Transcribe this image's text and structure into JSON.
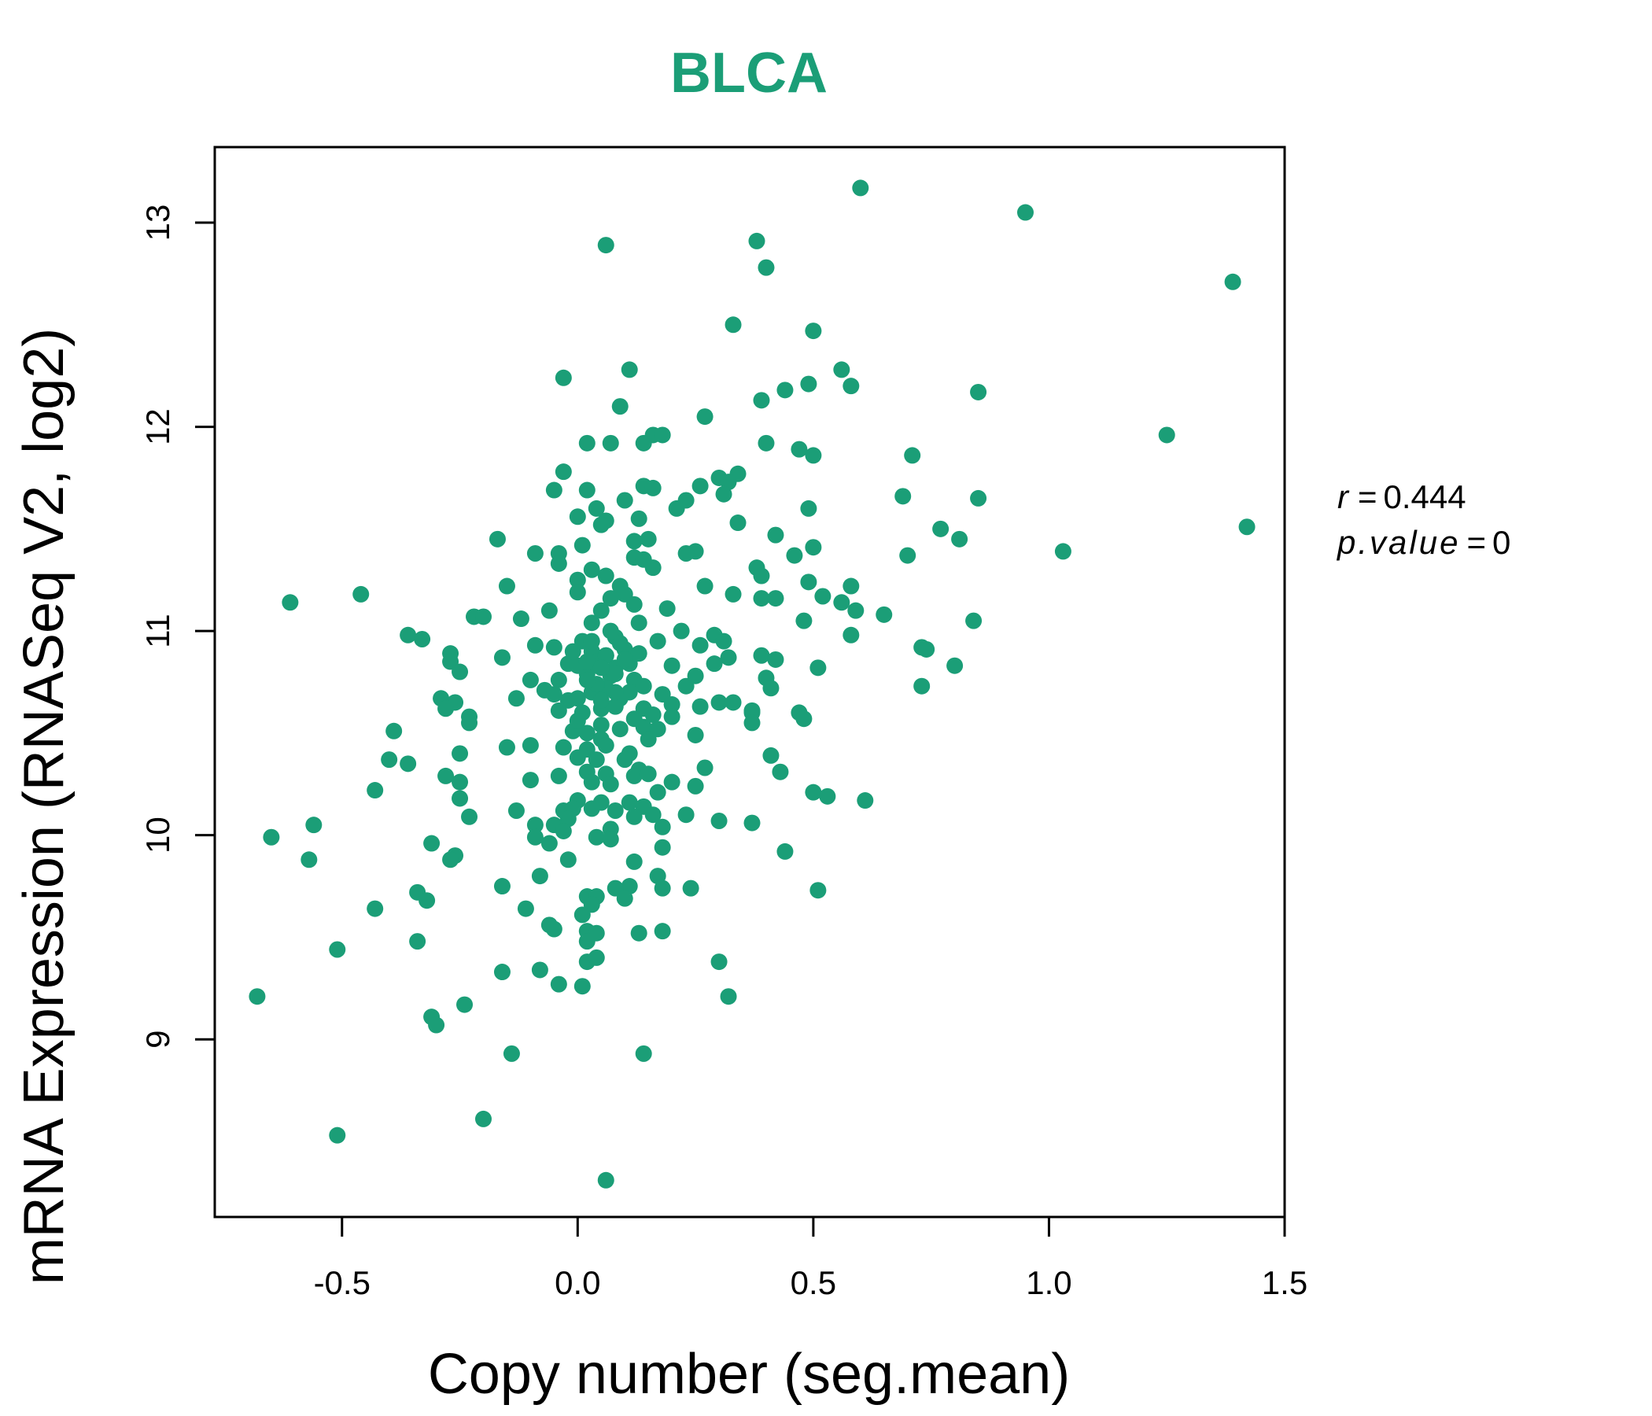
{
  "chart_data": {
    "type": "scatter",
    "title": "BLCA",
    "xlabel": "Copy number (seg.mean)",
    "ylabel": "mRNA Expression (RNASeq V2, log2)",
    "xlim": [
      -0.77,
      1.5
    ],
    "ylim": [
      8.13,
      13.37
    ],
    "x_ticks": [
      -0.5,
      0.0,
      0.5,
      1.0,
      1.5
    ],
    "x_tick_labels": [
      "-0.5",
      "0.0",
      "0.5",
      "1.0",
      "1.5"
    ],
    "y_ticks": [
      9,
      10,
      11,
      12,
      13
    ],
    "y_tick_labels": [
      "9",
      "10",
      "11",
      "12",
      "13"
    ],
    "grid": false,
    "point_color": "#1b9e77",
    "annotation": {
      "r_label": "r",
      "r_value": "0.444",
      "p_label": "p.value",
      "p_value": "0",
      "equals": "="
    },
    "points": [
      [
        0.6,
        13.17
      ],
      [
        0.95,
        13.05
      ],
      [
        1.39,
        12.71
      ],
      [
        0.06,
        12.89
      ],
      [
        0.38,
        12.91
      ],
      [
        0.4,
        12.78
      ],
      [
        0.33,
        12.5
      ],
      [
        0.5,
        12.47
      ],
      [
        -0.03,
        12.24
      ],
      [
        0.11,
        12.28
      ],
      [
        0.56,
        12.28
      ],
      [
        0.49,
        12.21
      ],
      [
        0.58,
        12.2
      ],
      [
        0.44,
        12.18
      ],
      [
        0.85,
        12.17
      ],
      [
        0.39,
        12.13
      ],
      [
        0.09,
        12.1
      ],
      [
        0.27,
        12.05
      ],
      [
        1.25,
        11.96
      ],
      [
        0.16,
        11.96
      ],
      [
        0.18,
        11.96
      ],
      [
        0.02,
        11.92
      ],
      [
        0.07,
        11.92
      ],
      [
        0.14,
        11.92
      ],
      [
        0.4,
        11.92
      ],
      [
        0.47,
        11.89
      ],
      [
        0.5,
        11.86
      ],
      [
        0.71,
        11.86
      ],
      [
        -0.03,
        11.78
      ],
      [
        0.34,
        11.77
      ],
      [
        0.3,
        11.75
      ],
      [
        0.32,
        11.73
      ],
      [
        0.14,
        11.71
      ],
      [
        0.16,
        11.7
      ],
      [
        0.02,
        11.69
      ],
      [
        -0.05,
        11.69
      ],
      [
        0.26,
        11.71
      ],
      [
        0.31,
        11.67
      ],
      [
        0.69,
        11.66
      ],
      [
        0.85,
        11.65
      ],
      [
        0.1,
        11.64
      ],
      [
        0.23,
        11.64
      ],
      [
        0.21,
        11.6
      ],
      [
        0.04,
        11.6
      ],
      [
        0.49,
        11.6
      ],
      [
        0.0,
        11.56
      ],
      [
        0.06,
        11.54
      ],
      [
        0.13,
        11.55
      ],
      [
        0.34,
        11.53
      ],
      [
        0.05,
        11.52
      ],
      [
        0.77,
        11.5
      ],
      [
        0.81,
        11.45
      ],
      [
        0.42,
        11.47
      ],
      [
        1.42,
        11.51
      ],
      [
        0.01,
        11.42
      ],
      [
        -0.17,
        11.45
      ],
      [
        0.15,
        11.45
      ],
      [
        0.12,
        11.44
      ],
      [
        0.5,
        11.41
      ],
      [
        1.03,
        11.39
      ],
      [
        -0.09,
        11.38
      ],
      [
        -0.04,
        11.38
      ],
      [
        0.12,
        11.36
      ],
      [
        0.25,
        11.39
      ],
      [
        0.23,
        11.38
      ],
      [
        0.46,
        11.37
      ],
      [
        0.7,
        11.37
      ],
      [
        0.14,
        11.35
      ],
      [
        0.16,
        11.31
      ],
      [
        -0.04,
        11.33
      ],
      [
        0.38,
        11.31
      ],
      [
        0.39,
        11.27
      ],
      [
        0.03,
        11.3
      ],
      [
        0.06,
        11.27
      ],
      [
        0.0,
        11.25
      ],
      [
        0.09,
        11.22
      ],
      [
        -0.15,
        11.22
      ],
      [
        0.27,
        11.22
      ],
      [
        0.49,
        11.24
      ],
      [
        0.58,
        11.22
      ],
      [
        -0.46,
        11.18
      ],
      [
        0.33,
        11.18
      ],
      [
        0.39,
        11.16
      ],
      [
        0.42,
        11.16
      ],
      [
        0.52,
        11.17
      ],
      [
        0.1,
        11.18
      ],
      [
        0.0,
        11.19
      ],
      [
        0.07,
        11.16
      ],
      [
        0.12,
        11.13
      ],
      [
        0.56,
        11.14
      ],
      [
        0.59,
        11.1
      ],
      [
        -0.61,
        11.14
      ],
      [
        0.19,
        11.11
      ],
      [
        -0.06,
        11.1
      ],
      [
        0.05,
        11.1
      ],
      [
        0.65,
        11.08
      ],
      [
        -0.22,
        11.07
      ],
      [
        -0.2,
        11.07
      ],
      [
        -0.12,
        11.06
      ],
      [
        0.48,
        11.05
      ],
      [
        0.84,
        11.05
      ],
      [
        0.03,
        11.04
      ],
      [
        0.13,
        11.04
      ],
      [
        0.22,
        11.0
      ],
      [
        -0.36,
        10.98
      ],
      [
        -0.33,
        10.96
      ],
      [
        0.29,
        10.98
      ],
      [
        0.31,
        10.95
      ],
      [
        0.58,
        10.98
      ],
      [
        -0.09,
        10.93
      ],
      [
        -0.05,
        10.92
      ],
      [
        0.01,
        10.95
      ],
      [
        0.08,
        10.97
      ],
      [
        0.17,
        10.95
      ],
      [
        0.26,
        10.93
      ],
      [
        0.73,
        10.92
      ],
      [
        0.74,
        10.91
      ],
      [
        0.39,
        10.88
      ],
      [
        0.42,
        10.86
      ],
      [
        -0.27,
        10.89
      ],
      [
        -0.16,
        10.87
      ],
      [
        0.32,
        10.87
      ],
      [
        0.03,
        10.9
      ],
      [
        0.06,
        10.88
      ],
      [
        0.1,
        10.91
      ],
      [
        0.13,
        10.89
      ],
      [
        -0.27,
        10.85
      ],
      [
        -0.02,
        10.84
      ],
      [
        0.0,
        10.83
      ],
      [
        0.04,
        10.85
      ],
      [
        0.08,
        10.82
      ],
      [
        0.11,
        10.84
      ],
      [
        0.2,
        10.83
      ],
      [
        0.29,
        10.84
      ],
      [
        0.51,
        10.82
      ],
      [
        0.8,
        10.83
      ],
      [
        -0.25,
        10.8
      ],
      [
        -0.1,
        10.76
      ],
      [
        -0.04,
        10.76
      ],
      [
        0.02,
        10.79
      ],
      [
        0.07,
        10.78
      ],
      [
        0.12,
        10.76
      ],
      [
        0.25,
        10.78
      ],
      [
        0.4,
        10.77
      ],
      [
        0.23,
        10.73
      ],
      [
        0.14,
        10.73
      ],
      [
        0.06,
        10.72
      ],
      [
        0.73,
        10.73
      ],
      [
        0.41,
        10.72
      ],
      [
        -0.07,
        10.71
      ],
      [
        -0.29,
        10.67
      ],
      [
        -0.13,
        10.67
      ],
      [
        -0.05,
        10.69
      ],
      [
        -0.02,
        10.66
      ],
      [
        0.0,
        10.67
      ],
      [
        0.03,
        10.7
      ],
      [
        0.09,
        10.67
      ],
      [
        0.18,
        10.69
      ],
      [
        0.3,
        10.65
      ],
      [
        0.33,
        10.65
      ],
      [
        0.2,
        10.64
      ],
      [
        0.26,
        10.63
      ],
      [
        -0.26,
        10.65
      ],
      [
        -0.28,
        10.62
      ],
      [
        -0.04,
        10.61
      ],
      [
        0.01,
        10.6
      ],
      [
        0.05,
        10.62
      ],
      [
        0.08,
        10.63
      ],
      [
        0.14,
        10.62
      ],
      [
        0.37,
        10.61
      ],
      [
        0.37,
        10.6
      ],
      [
        0.47,
        10.6
      ],
      [
        0.48,
        10.57
      ],
      [
        -0.23,
        10.58
      ],
      [
        -0.23,
        10.55
      ],
      [
        0.12,
        10.57
      ],
      [
        0.16,
        10.59
      ],
      [
        0.2,
        10.58
      ],
      [
        0.05,
        10.54
      ],
      [
        0.14,
        10.53
      ],
      [
        0.37,
        10.55
      ],
      [
        -0.39,
        10.51
      ],
      [
        -0.01,
        10.51
      ],
      [
        0.02,
        10.5
      ],
      [
        0.09,
        10.52
      ],
      [
        0.17,
        10.52
      ],
      [
        0.25,
        10.49
      ],
      [
        0.05,
        10.47
      ],
      [
        0.15,
        10.47
      ],
      [
        -0.1,
        10.44
      ],
      [
        -0.15,
        10.43
      ],
      [
        -0.03,
        10.43
      ],
      [
        0.02,
        10.42
      ],
      [
        0.06,
        10.44
      ],
      [
        0.11,
        10.4
      ],
      [
        -0.4,
        10.37
      ],
      [
        -0.36,
        10.35
      ],
      [
        -0.25,
        10.4
      ],
      [
        0.0,
        10.38
      ],
      [
        0.04,
        10.37
      ],
      [
        0.1,
        10.37
      ],
      [
        0.13,
        10.32
      ],
      [
        0.27,
        10.33
      ],
      [
        0.41,
        10.39
      ],
      [
        0.43,
        10.31
      ],
      [
        -0.28,
        10.29
      ],
      [
        -0.04,
        10.29
      ],
      [
        0.02,
        10.31
      ],
      [
        0.06,
        10.3
      ],
      [
        0.12,
        10.29
      ],
      [
        0.15,
        10.3
      ],
      [
        -0.25,
        10.26
      ],
      [
        -0.1,
        10.27
      ],
      [
        0.03,
        10.26
      ],
      [
        0.07,
        10.25
      ],
      [
        0.2,
        10.26
      ],
      [
        0.25,
        10.24
      ],
      [
        -0.43,
        10.22
      ],
      [
        0.17,
        10.21
      ],
      [
        0.5,
        10.21
      ],
      [
        0.53,
        10.19
      ],
      [
        0.61,
        10.17
      ],
      [
        -0.25,
        10.18
      ],
      [
        0.0,
        10.17
      ],
      [
        0.05,
        10.16
      ],
      [
        0.11,
        10.16
      ],
      [
        0.14,
        10.14
      ],
      [
        0.03,
        10.13
      ],
      [
        -0.03,
        10.12
      ],
      [
        -0.01,
        10.13
      ],
      [
        0.08,
        10.12
      ],
      [
        -0.13,
        10.12
      ],
      [
        0.23,
        10.1
      ],
      [
        0.12,
        10.09
      ],
      [
        0.16,
        10.1
      ],
      [
        -0.23,
        10.09
      ],
      [
        -0.02,
        10.08
      ],
      [
        0.3,
        10.07
      ],
      [
        0.37,
        10.06
      ],
      [
        -0.09,
        10.05
      ],
      [
        -0.05,
        10.05
      ],
      [
        -0.56,
        10.05
      ],
      [
        0.18,
        10.04
      ],
      [
        -0.03,
        10.02
      ],
      [
        0.07,
        10.03
      ],
      [
        -0.65,
        9.99
      ],
      [
        -0.09,
        9.99
      ],
      [
        0.04,
        9.99
      ],
      [
        0.07,
        9.98
      ],
      [
        -0.31,
        9.96
      ],
      [
        -0.06,
        9.96
      ],
      [
        0.18,
        9.94
      ],
      [
        0.44,
        9.92
      ],
      [
        -0.26,
        9.9
      ],
      [
        -0.27,
        9.88
      ],
      [
        -0.57,
        9.88
      ],
      [
        -0.02,
        9.88
      ],
      [
        0.12,
        9.87
      ],
      [
        -0.08,
        9.8
      ],
      [
        0.17,
        9.8
      ],
      [
        -0.16,
        9.75
      ],
      [
        0.11,
        9.75
      ],
      [
        0.18,
        9.74
      ],
      [
        0.24,
        9.74
      ],
      [
        0.08,
        9.74
      ],
      [
        0.51,
        9.73
      ],
      [
        -0.34,
        9.72
      ],
      [
        -0.32,
        9.68
      ],
      [
        0.02,
        9.7
      ],
      [
        0.04,
        9.7
      ],
      [
        0.1,
        9.69
      ],
      [
        0.03,
        9.66
      ],
      [
        -0.43,
        9.64
      ],
      [
        -0.11,
        9.64
      ],
      [
        0.01,
        9.61
      ],
      [
        -0.06,
        9.56
      ],
      [
        -0.05,
        9.54
      ],
      [
        0.02,
        9.53
      ],
      [
        0.04,
        9.52
      ],
      [
        0.13,
        9.52
      ],
      [
        0.18,
        9.53
      ],
      [
        -0.34,
        9.48
      ],
      [
        0.02,
        9.48
      ],
      [
        -0.51,
        9.44
      ],
      [
        0.3,
        9.38
      ],
      [
        0.02,
        9.38
      ],
      [
        0.04,
        9.4
      ],
      [
        -0.16,
        9.33
      ],
      [
        -0.08,
        9.34
      ],
      [
        -0.04,
        9.27
      ],
      [
        0.01,
        9.26
      ],
      [
        -0.68,
        9.21
      ],
      [
        0.32,
        9.21
      ],
      [
        -0.24,
        9.17
      ],
      [
        -0.31,
        9.11
      ],
      [
        -0.3,
        9.07
      ],
      [
        -0.14,
        8.93
      ],
      [
        0.14,
        8.93
      ],
      [
        -0.2,
        8.61
      ],
      [
        -0.51,
        8.53
      ],
      [
        0.06,
        8.31
      ],
      [
        0.06,
        10.88
      ],
      [
        0.08,
        10.79
      ],
      [
        0.04,
        10.74
      ],
      [
        0.1,
        10.86
      ],
      [
        0.03,
        10.95
      ],
      [
        0.0,
        10.56
      ],
      [
        0.05,
        10.66
      ],
      [
        0.09,
        10.94
      ],
      [
        0.11,
        10.7
      ],
      [
        0.02,
        10.85
      ],
      [
        -0.01,
        10.9
      ],
      [
        0.07,
        11.0
      ],
      [
        0.05,
        10.82
      ],
      [
        0.08,
        10.7
      ],
      [
        0.02,
        10.76
      ]
    ]
  }
}
